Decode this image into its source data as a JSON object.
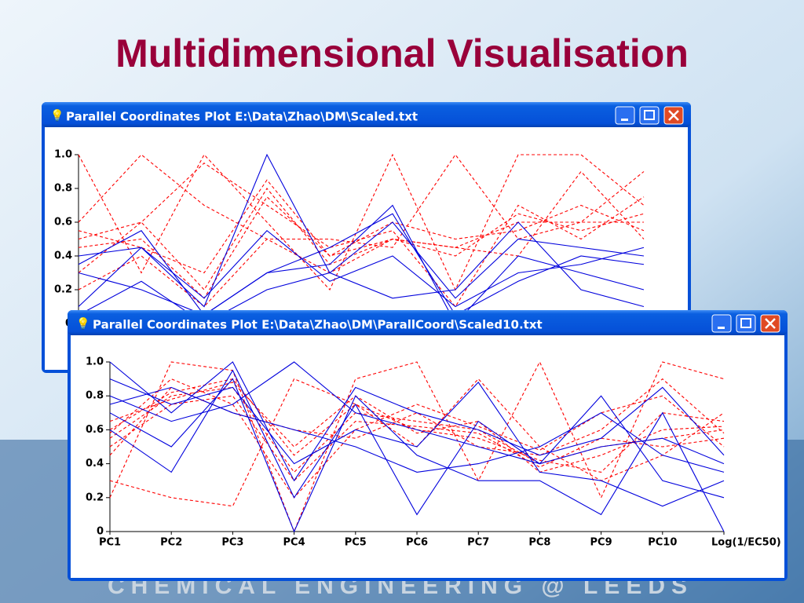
{
  "slide_title": "Multidimensional Visualisation",
  "footer": "CHEMICAL ENGINEERING @ LEEDS",
  "chart_data": [
    {
      "type": "parallel",
      "window_title": "Parallel Coordinates Plot E:\\Data\\Zhao\\DM\\Scaled.txt",
      "categories": [
        null,
        null,
        null,
        null,
        null,
        null,
        null,
        null,
        null,
        null
      ],
      "ylim": [
        0,
        1
      ],
      "yticks": [
        0,
        0.2,
        0.4,
        0.6,
        0.8,
        {
          "value": 1,
          "label": "1.0"
        }
      ],
      "series": [
        {
          "color": "#ff0000",
          "dashed": true,
          "values": [
            0.5,
            0.6,
            0.2,
            0.8,
            0.35,
            0.5,
            0.45,
            0.6,
            0.6,
            0.6
          ]
        },
        {
          "color": "#ff0000",
          "dashed": true,
          "values": [
            0.45,
            0.5,
            0.15,
            0.75,
            0.4,
            0.5,
            0.4,
            0.65,
            0.55,
            0.65
          ]
        },
        {
          "color": "#ff0000",
          "dashed": true,
          "values": [
            0.55,
            0.45,
            0.3,
            0.85,
            0.4,
            0.6,
            0.5,
            0.55,
            0.7,
            0.55
          ]
        },
        {
          "color": "#ff0000",
          "dashed": true,
          "values": [
            1.0,
            0.3,
            1.0,
            0.6,
            0.2,
            1.0,
            0.2,
            1.0,
            1.0,
            0.7
          ]
        },
        {
          "color": "#ff0000",
          "dashed": true,
          "values": [
            0.6,
            1.0,
            0.7,
            0.5,
            0.5,
            0.45,
            1.0,
            0.5,
            0.6,
            0.9
          ]
        },
        {
          "color": "#ff0000",
          "dashed": true,
          "values": [
            0.3,
            0.6,
            0.95,
            0.7,
            0.45,
            0.55,
            0.1,
            0.7,
            0.5,
            0.75
          ]
        },
        {
          "color": "#ff0000",
          "dashed": true,
          "values": [
            0.2,
            0.4,
            0.1,
            0.5,
            0.3,
            0.5,
            0.45,
            0.4,
            0.9,
            0.5
          ]
        },
        {
          "color": "#0000dd",
          "dashed": false,
          "values": [
            0.4,
            0.45,
            0.1,
            1.0,
            0.3,
            0.6,
            0.15,
            0.5,
            0.45,
            0.4
          ]
        },
        {
          "color": "#0000dd",
          "dashed": false,
          "values": [
            0.3,
            0.2,
            0.05,
            0.3,
            0.35,
            0.7,
            0.0,
            0.4,
            0.3,
            0.2
          ]
        },
        {
          "color": "#0000dd",
          "dashed": false,
          "values": [
            0.1,
            0.45,
            0.15,
            0.55,
            0.25,
            0.4,
            0.1,
            0.3,
            0.35,
            0.45
          ]
        },
        {
          "color": "#0000dd",
          "dashed": false,
          "values": [
            0.05,
            0.25,
            0.0,
            0.2,
            0.3,
            0.15,
            0.2,
            0.6,
            0.2,
            0.1
          ]
        },
        {
          "color": "#0000dd",
          "dashed": false,
          "values": [
            0.35,
            0.55,
            0.05,
            0.3,
            0.45,
            0.65,
            0.05,
            0.25,
            0.4,
            0.35
          ]
        }
      ]
    },
    {
      "type": "parallel",
      "window_title": "Parallel Coordinates Plot E:\\Data\\Zhao\\DM\\ParallCoord\\Scaled10.txt",
      "categories": [
        "PC1",
        "PC2",
        "PC3",
        "PC4",
        "PC5",
        "PC6",
        "PC7",
        "PC8",
        "PC9",
        "PC10",
        "Log(1/EC50)"
      ],
      "ylim": [
        0,
        1
      ],
      "yticks": [
        0,
        0.2,
        0.4,
        0.6,
        0.8,
        {
          "value": 1,
          "label": "1.0"
        }
      ],
      "series": [
        {
          "color": "#ff0000",
          "dashed": true,
          "values": [
            0.55,
            0.8,
            0.85,
            0.35,
            0.7,
            0.65,
            0.6,
            0.4,
            0.5,
            0.55,
            0.6
          ]
        },
        {
          "color": "#ff0000",
          "dashed": true,
          "values": [
            0.6,
            0.82,
            0.9,
            0.45,
            0.75,
            0.6,
            0.55,
            0.42,
            0.35,
            0.7,
            0.65
          ]
        },
        {
          "color": "#ff0000",
          "dashed": true,
          "values": [
            0.5,
            0.75,
            0.8,
            0.3,
            0.65,
            0.62,
            0.58,
            0.38,
            0.55,
            0.5,
            0.55
          ]
        },
        {
          "color": "#ff0000",
          "dashed": true,
          "values": [
            0.2,
            1.0,
            0.95,
            0.0,
            0.9,
            1.0,
            0.3,
            1.0,
            0.2,
            1.0,
            0.9
          ]
        },
        {
          "color": "#ff0000",
          "dashed": true,
          "values": [
            0.45,
            0.85,
            0.7,
            0.6,
            0.55,
            0.7,
            0.5,
            0.45,
            0.6,
            0.9,
            0.58
          ]
        },
        {
          "color": "#ff0000",
          "dashed": true,
          "values": [
            0.65,
            0.78,
            0.88,
            0.5,
            0.8,
            0.58,
            0.65,
            0.35,
            0.45,
            0.6,
            0.62
          ]
        },
        {
          "color": "#ff0000",
          "dashed": true,
          "values": [
            0.3,
            0.2,
            0.15,
            0.9,
            0.75,
            0.5,
            0.9,
            0.5,
            0.3,
            0.45,
            0.7
          ]
        },
        {
          "color": "#ff0000",
          "dashed": true,
          "values": [
            0.58,
            0.9,
            0.75,
            0.2,
            0.6,
            0.75,
            0.62,
            0.48,
            0.7,
            0.8,
            0.5
          ]
        },
        {
          "color": "#0000dd",
          "dashed": false,
          "values": [
            1.0,
            0.7,
            1.0,
            0.3,
            0.85,
            0.7,
            0.6,
            0.45,
            0.55,
            0.85,
            0.45
          ]
        },
        {
          "color": "#0000dd",
          "dashed": false,
          "values": [
            0.7,
            0.5,
            0.9,
            0.0,
            0.8,
            0.45,
            0.3,
            0.3,
            0.1,
            0.7,
            0.0
          ]
        },
        {
          "color": "#0000dd",
          "dashed": false,
          "values": [
            0.8,
            0.65,
            0.75,
            1.0,
            0.7,
            0.6,
            0.5,
            0.4,
            0.8,
            0.3,
            0.2
          ]
        },
        {
          "color": "#0000dd",
          "dashed": false,
          "values": [
            0.6,
            0.35,
            0.95,
            0.2,
            0.75,
            0.1,
            0.65,
            0.4,
            0.5,
            0.55,
            0.4
          ]
        },
        {
          "color": "#0000dd",
          "dashed": false,
          "values": [
            0.9,
            0.75,
            0.85,
            0.4,
            0.6,
            0.5,
            0.88,
            0.35,
            0.3,
            0.15,
            0.3
          ]
        },
        {
          "color": "#0000dd",
          "dashed": false,
          "values": [
            0.75,
            0.85,
            0.7,
            0.6,
            0.5,
            0.35,
            0.4,
            0.5,
            0.7,
            0.45,
            0.35
          ]
        }
      ]
    }
  ]
}
